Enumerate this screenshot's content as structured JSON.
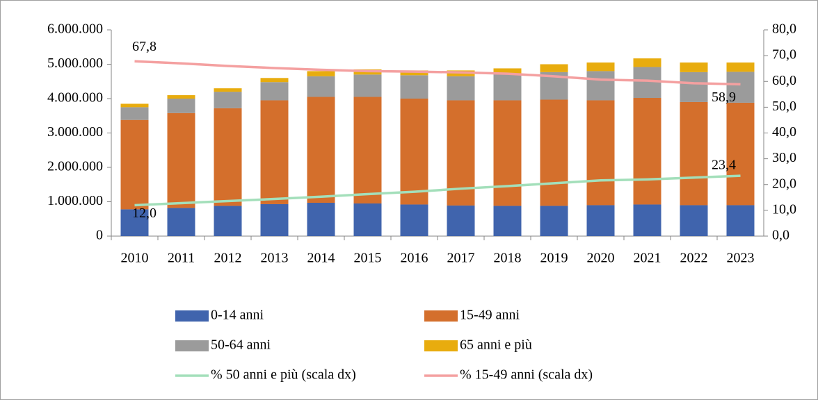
{
  "chart_data": {
    "type": "bar",
    "stacked": true,
    "categories": [
      "2010",
      "2011",
      "2012",
      "2013",
      "2014",
      "2015",
      "2016",
      "2017",
      "2018",
      "2019",
      "2020",
      "2021",
      "2022",
      "2023"
    ],
    "series": [
      {
        "name": "0-14 anni",
        "color": "#4064ad",
        "values": [
          780000,
          820000,
          880000,
          930000,
          970000,
          950000,
          920000,
          890000,
          880000,
          880000,
          900000,
          920000,
          900000,
          900000
        ]
      },
      {
        "name": "15-49 anni",
        "color": "#d46f2c",
        "values": [
          2600000,
          2760000,
          2840000,
          3020000,
          3080000,
          3100000,
          3080000,
          3060000,
          3070000,
          3090000,
          3050000,
          3100000,
          3000000,
          2980000
        ]
      },
      {
        "name": "50-64 anni",
        "color": "#9b9b9b",
        "values": [
          370000,
          420000,
          480000,
          530000,
          600000,
          650000,
          680000,
          700000,
          770000,
          800000,
          850000,
          900000,
          870000,
          900000
        ]
      },
      {
        "name": "65 anni e più",
        "color": "#e8ac0e",
        "values": [
          100000,
          100000,
          100000,
          120000,
          150000,
          150000,
          140000,
          170000,
          160000,
          230000,
          250000,
          250000,
          280000,
          270000
        ]
      },
      {
        "name": "% 50 anni e più (scala dx)",
        "type": "line",
        "axis": "y2",
        "color": "#a3dfba",
        "values": [
          12.0,
          12.8,
          13.6,
          14.4,
          15.3,
          16.3,
          17.2,
          18.4,
          19.4,
          20.5,
          21.6,
          22.0,
          22.7,
          23.4
        ],
        "value_labels": [
          "12,0",
          null,
          null,
          null,
          null,
          null,
          null,
          null,
          null,
          null,
          null,
          null,
          null,
          "23,4"
        ]
      },
      {
        "name": "% 15-49 anni (scala dx)",
        "type": "line",
        "axis": "y2",
        "color": "#f4a0a0",
        "values": [
          67.8,
          67.0,
          66.0,
          65.2,
          64.5,
          64.0,
          63.8,
          63.5,
          63.0,
          62.0,
          60.7,
          60.3,
          59.3,
          58.9
        ],
        "value_labels": [
          "67,8",
          null,
          null,
          null,
          null,
          null,
          null,
          null,
          null,
          null,
          null,
          null,
          null,
          "58,9"
        ]
      }
    ],
    "ylim": [
      0,
      6000000
    ],
    "yticks": [
      0,
      {
        "value": 1000000,
        "label": "1.000.000"
      },
      {
        "value": 2000000,
        "label": "2.000.000"
      },
      {
        "value": 3000000,
        "label": "3.000.000"
      },
      {
        "value": 4000000,
        "label": "4.000.000"
      },
      {
        "value": 5000000,
        "label": "5.000.000"
      },
      {
        "value": 6000000,
        "label": "6.000.000"
      }
    ],
    "y2lim": [
      0,
      80
    ],
    "y2ticks": [
      {
        "value": 0,
        "label": "0,0"
      },
      {
        "value": 10,
        "label": "10,0"
      },
      {
        "value": 20,
        "label": "20,0"
      },
      {
        "value": 30,
        "label": "30,0"
      },
      {
        "value": 40,
        "label": "40,0"
      },
      {
        "value": 50,
        "label": "50,0"
      },
      {
        "value": 60,
        "label": "60,0"
      },
      {
        "value": 70,
        "label": "70,0"
      },
      {
        "value": 80,
        "label": "80,0"
      }
    ],
    "grid": false,
    "legend": "bottom"
  }
}
